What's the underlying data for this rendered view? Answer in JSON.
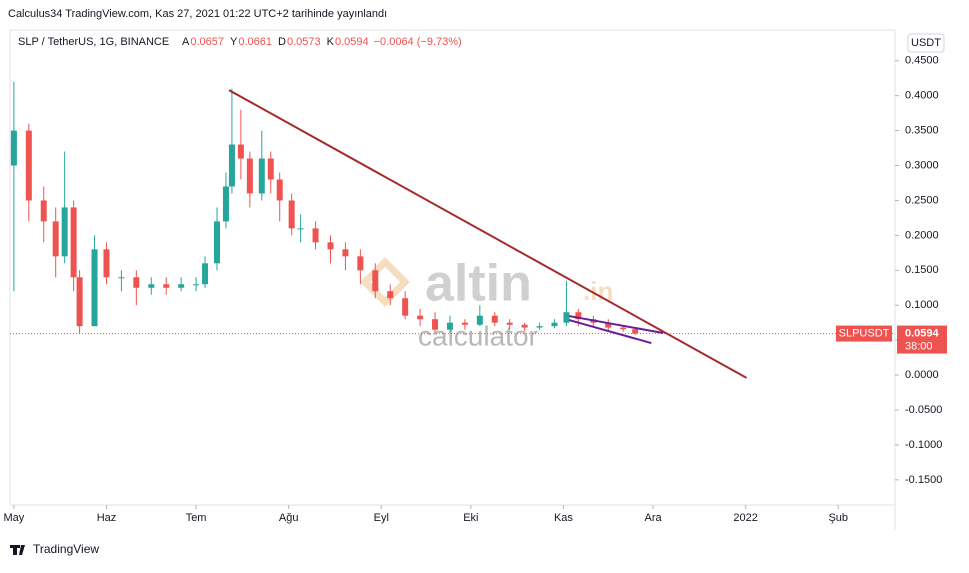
{
  "header": {
    "published": "Calculus34 TradingView.com, Kas 27, 2021 01:22 UTC+2 tarihinde yayınlandı"
  },
  "chart_data": {
    "type": "candlestick",
    "symbol": "SLP / TetherUS, 1G, BINANCE",
    "ohlc_legend": [
      {
        "label": "A",
        "value": "0.0657"
      },
      {
        "label": "Y",
        "value": "0.0661"
      },
      {
        "label": "D",
        "value": "0.0573"
      },
      {
        "label": "K",
        "value": "0.0594"
      }
    ],
    "change": "−0.0064 (−9.73%)",
    "currency_button": "USDT",
    "x": [
      0,
      5,
      10,
      14,
      17,
      20,
      22,
      27,
      31,
      36,
      41,
      46,
      51,
      56,
      61,
      64,
      68,
      71,
      73,
      76,
      79,
      83,
      86,
      89,
      93,
      96,
      101,
      106,
      111,
      116,
      121,
      126,
      131,
      136,
      141,
      146,
      151,
      156,
      161,
      166,
      171,
      176,
      181,
      185,
      189,
      194,
      199,
      204,
      208
    ],
    "open": [
      0.3,
      0.35,
      0.25,
      0.22,
      0.17,
      0.24,
      0.14,
      0.07,
      0.18,
      0.14,
      0.14,
      0.125,
      0.13,
      0.125,
      0.13,
      0.13,
      0.16,
      0.22,
      0.27,
      0.33,
      0.31,
      0.26,
      0.31,
      0.28,
      0.25,
      0.21,
      0.21,
      0.19,
      0.18,
      0.17,
      0.15,
      0.12,
      0.11,
      0.085,
      0.08,
      0.065,
      0.075,
      0.072,
      0.085,
      0.075,
      0.072,
      0.068,
      0.07,
      0.075,
      0.09,
      0.08,
      0.075,
      0.068,
      0.0657
    ],
    "high": [
      0.42,
      0.36,
      0.27,
      0.24,
      0.32,
      0.25,
      0.15,
      0.2,
      0.19,
      0.15,
      0.15,
      0.14,
      0.14,
      0.14,
      0.14,
      0.17,
      0.24,
      0.29,
      0.41,
      0.38,
      0.32,
      0.35,
      0.32,
      0.29,
      0.26,
      0.23,
      0.22,
      0.2,
      0.19,
      0.18,
      0.16,
      0.13,
      0.12,
      0.095,
      0.09,
      0.085,
      0.08,
      0.1,
      0.09,
      0.08,
      0.075,
      0.075,
      0.08,
      0.135,
      0.095,
      0.085,
      0.08,
      0.07,
      0.0661
    ],
    "low": [
      0.12,
      0.22,
      0.19,
      0.14,
      0.16,
      0.12,
      0.06,
      0.07,
      0.13,
      0.12,
      0.1,
      0.115,
      0.115,
      0.12,
      0.12,
      0.125,
      0.15,
      0.21,
      0.26,
      0.28,
      0.24,
      0.25,
      0.26,
      0.22,
      0.2,
      0.19,
      0.18,
      0.16,
      0.15,
      0.13,
      0.11,
      0.1,
      0.08,
      0.07,
      0.06,
      0.06,
      0.065,
      0.07,
      0.07,
      0.065,
      0.063,
      0.065,
      0.067,
      0.07,
      0.07,
      0.068,
      0.063,
      0.062,
      0.0573
    ],
    "close": [
      0.35,
      0.25,
      0.22,
      0.17,
      0.24,
      0.14,
      0.07,
      0.18,
      0.14,
      0.14,
      0.125,
      0.13,
      0.125,
      0.13,
      0.13,
      0.16,
      0.22,
      0.27,
      0.33,
      0.31,
      0.26,
      0.31,
      0.28,
      0.25,
      0.21,
      0.21,
      0.19,
      0.18,
      0.17,
      0.15,
      0.12,
      0.11,
      0.085,
      0.08,
      0.065,
      0.075,
      0.072,
      0.085,
      0.075,
      0.072,
      0.068,
      0.07,
      0.075,
      0.09,
      0.08,
      0.075,
      0.068,
      0.0657,
      0.0594
    ],
    "up_color": "#26a69a",
    "down_color": "#ef5350",
    "xlim": [
      -1.3,
      295
    ],
    "xticks": [
      {
        "value": 0,
        "label": "May"
      },
      {
        "value": 31,
        "label": "Haz"
      },
      {
        "value": 61,
        "label": "Tem"
      },
      {
        "value": 92,
        "label": "Ağu"
      },
      {
        "value": 123,
        "label": "Eyl"
      },
      {
        "value": 153,
        "label": "Eki"
      },
      {
        "value": 184,
        "label": "Kas"
      },
      {
        "value": 214,
        "label": "Ara"
      },
      {
        "value": 245,
        "label": "2022"
      },
      {
        "value": 276,
        "label": "Şub"
      }
    ],
    "ylim": [
      -0.186,
      0.494
    ],
    "yticks": [
      {
        "value": 0.45,
        "label": "0.4500"
      },
      {
        "value": 0.4,
        "label": "0.4000"
      },
      {
        "value": 0.35,
        "label": "0.3500"
      },
      {
        "value": 0.3,
        "label": "0.3000"
      },
      {
        "value": 0.25,
        "label": "0.2500"
      },
      {
        "value": 0.2,
        "label": "0.2000"
      },
      {
        "value": 0.15,
        "label": "0.1500"
      },
      {
        "value": 0.1,
        "label": "0.1000"
      },
      {
        "value": 0.05,
        "label": "0.0500"
      },
      {
        "value": 0,
        "label": "0.0000"
      },
      {
        "value": -0.05,
        "label": "-0.0500"
      },
      {
        "value": -0.1,
        "label": "-0.1000"
      },
      {
        "value": -0.15,
        "label": "-0.1500"
      }
    ],
    "last_price": {
      "symbol": "SLPUSDT",
      "value": 0.0594,
      "label": "0.0594",
      "countdown": "38:00",
      "color": "#ef5350"
    },
    "trendlines": [
      {
        "color": "#a52a2a",
        "x": [
          72,
          245.3
        ],
        "y": [
          0.408,
          -0.004
        ]
      },
      {
        "color": "#6a1b9a",
        "x": [
          185.9,
          217.4
        ],
        "y": [
          0.0845,
          0.0602
        ]
      },
      {
        "color": "#6a1b9a",
        "x": [
          185.9,
          213.4
        ],
        "y": [
          0.0788,
          0.0458
        ]
      }
    ],
    "watermark": {
      "brand": "altin",
      "suffix": ".in",
      "sub": "calculator"
    },
    "footer": "TradingView"
  }
}
